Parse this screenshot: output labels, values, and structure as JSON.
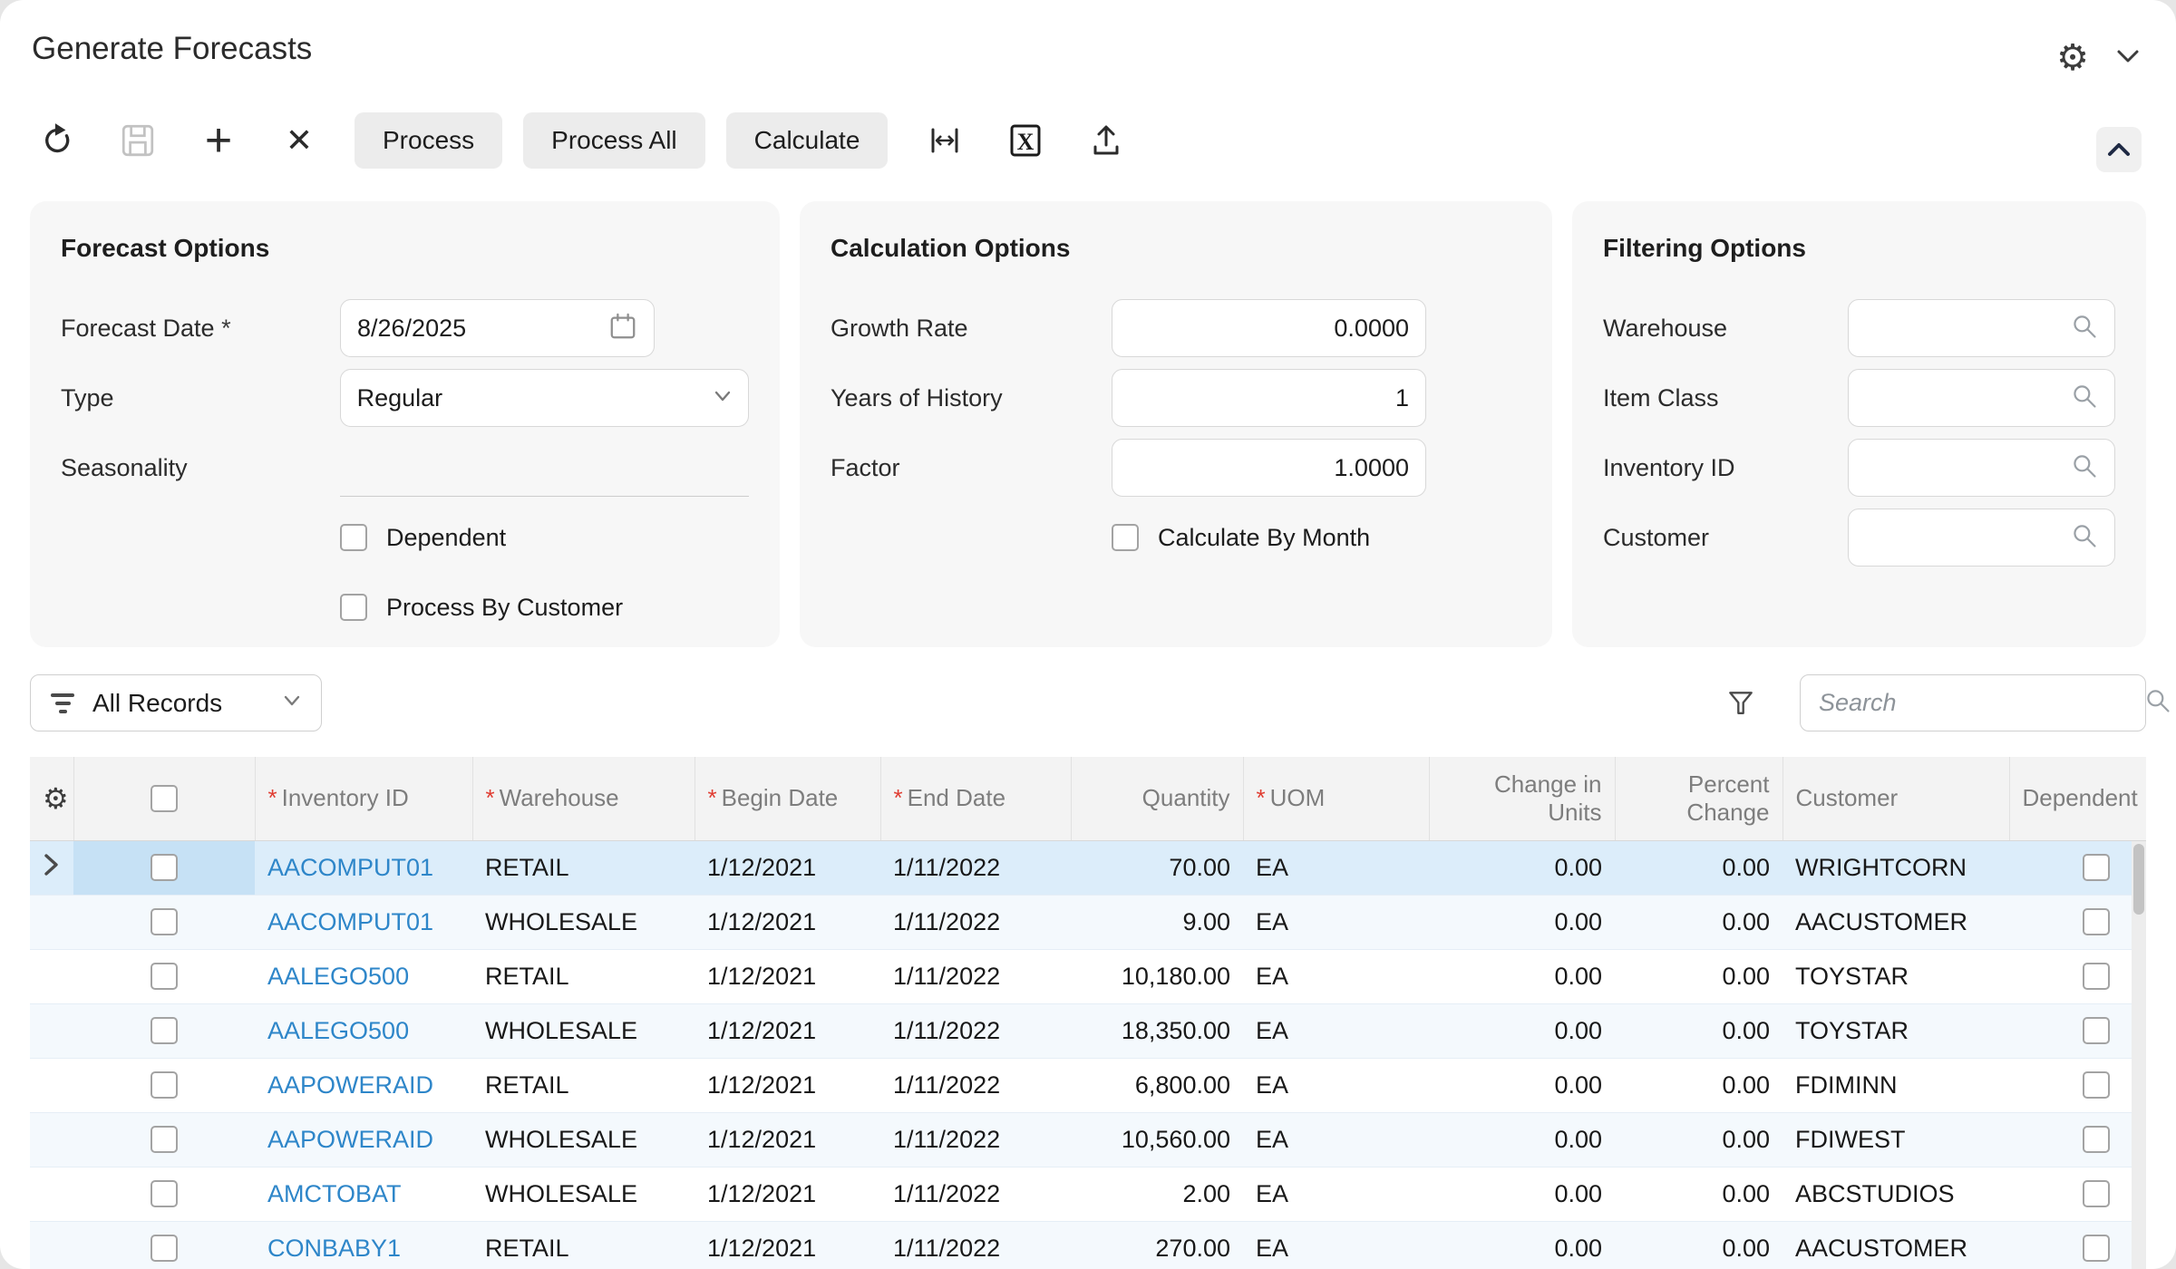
{
  "app": {
    "title": "Generate Forecasts"
  },
  "icons": {
    "gear": "⚙",
    "plus": "+",
    "close": "✕",
    "required_star": "*"
  },
  "toolbar": {
    "process_label": "Process",
    "process_all_label": "Process All",
    "calculate_label": "Calculate"
  },
  "forecast_options": {
    "title": "Forecast Options",
    "forecast_date_label": "Forecast Date",
    "forecast_date_required": "*",
    "forecast_date_value": "8/26/2025",
    "type_label": "Type",
    "type_value": "Regular",
    "seasonality_label": "Seasonality",
    "seasonality_value": "",
    "dependent_label": "Dependent",
    "dependent_checked": false,
    "process_by_customer_label": "Process By Customer",
    "process_by_customer_checked": false
  },
  "calculation_options": {
    "title": "Calculation Options",
    "growth_rate_label": "Growth Rate",
    "growth_rate_value": "0.0000",
    "years_of_history_label": "Years of History",
    "years_of_history_value": "1",
    "factor_label": "Factor",
    "factor_value": "1.0000",
    "calculate_by_month_label": "Calculate By Month",
    "calculate_by_month_checked": false
  },
  "filtering_options": {
    "title": "Filtering Options",
    "warehouse_label": "Warehouse",
    "warehouse_value": "",
    "item_class_label": "Item Class",
    "item_class_value": "",
    "inventory_id_label": "Inventory ID",
    "inventory_id_value": "",
    "customer_label": "Customer",
    "customer_value": ""
  },
  "filter_bar": {
    "records_filter": "All Records",
    "search_placeholder": "Search"
  },
  "colors": {
    "link_blue": "#2e86c9",
    "selected_row": "#dcedfa",
    "selected_checkbox_cell": "#c6e1f5",
    "required_red": "#e03c31"
  },
  "table": {
    "columns": [
      {
        "key": "inventory_id",
        "label": "Inventory ID",
        "required": true,
        "align": "left",
        "link": true
      },
      {
        "key": "warehouse",
        "label": "Warehouse",
        "required": true,
        "align": "left"
      },
      {
        "key": "begin_date",
        "label": "Begin Date",
        "required": true,
        "align": "left"
      },
      {
        "key": "end_date",
        "label": "End Date",
        "required": true,
        "align": "left"
      },
      {
        "key": "quantity",
        "label": "Quantity",
        "required": false,
        "align": "right"
      },
      {
        "key": "uom",
        "label": "UOM",
        "required": true,
        "align": "left"
      },
      {
        "key": "change_in_units",
        "label": "Change in Units",
        "required": false,
        "align": "right"
      },
      {
        "key": "percent_change",
        "label": "Percent Change",
        "required": false,
        "align": "right"
      },
      {
        "key": "customer",
        "label": "Customer",
        "required": false,
        "align": "left"
      },
      {
        "key": "dependent",
        "label": "Dependent",
        "required": false,
        "align": "right",
        "type": "checkbox"
      }
    ],
    "rows": [
      {
        "selected": true,
        "checked": false,
        "inventory_id": "AACOMPUT01",
        "warehouse": "RETAIL",
        "begin_date": "1/12/2021",
        "end_date": "1/11/2022",
        "quantity": "70.00",
        "uom": "EA",
        "change_in_units": "0.00",
        "percent_change": "0.00",
        "customer": "WRIGHTCORN",
        "dependent": false
      },
      {
        "selected": false,
        "checked": false,
        "inventory_id": "AACOMPUT01",
        "warehouse": "WHOLESALE",
        "begin_date": "1/12/2021",
        "end_date": "1/11/2022",
        "quantity": "9.00",
        "uom": "EA",
        "change_in_units": "0.00",
        "percent_change": "0.00",
        "customer": "AACUSTOMER",
        "dependent": false
      },
      {
        "selected": false,
        "checked": false,
        "inventory_id": "AALEGO500",
        "warehouse": "RETAIL",
        "begin_date": "1/12/2021",
        "end_date": "1/11/2022",
        "quantity": "10,180.00",
        "uom": "EA",
        "change_in_units": "0.00",
        "percent_change": "0.00",
        "customer": "TOYSTAR",
        "dependent": false
      },
      {
        "selected": false,
        "checked": false,
        "inventory_id": "AALEGO500",
        "warehouse": "WHOLESALE",
        "begin_date": "1/12/2021",
        "end_date": "1/11/2022",
        "quantity": "18,350.00",
        "uom": "EA",
        "change_in_units": "0.00",
        "percent_change": "0.00",
        "customer": "TOYSTAR",
        "dependent": false
      },
      {
        "selected": false,
        "checked": false,
        "inventory_id": "AAPOWERAID",
        "warehouse": "RETAIL",
        "begin_date": "1/12/2021",
        "end_date": "1/11/2022",
        "quantity": "6,800.00",
        "uom": "EA",
        "change_in_units": "0.00",
        "percent_change": "0.00",
        "customer": "FDIMINN",
        "dependent": false
      },
      {
        "selected": false,
        "checked": false,
        "inventory_id": "AAPOWERAID",
        "warehouse": "WHOLESALE",
        "begin_date": "1/12/2021",
        "end_date": "1/11/2022",
        "quantity": "10,560.00",
        "uom": "EA",
        "change_in_units": "0.00",
        "percent_change": "0.00",
        "customer": "FDIWEST",
        "dependent": false
      },
      {
        "selected": false,
        "checked": false,
        "inventory_id": "AMCTOBAT",
        "warehouse": "WHOLESALE",
        "begin_date": "1/12/2021",
        "end_date": "1/11/2022",
        "quantity": "2.00",
        "uom": "EA",
        "change_in_units": "0.00",
        "percent_change": "0.00",
        "customer": "ABCSTUDIOS",
        "dependent": false
      },
      {
        "selected": false,
        "checked": false,
        "inventory_id": "CONBABY1",
        "warehouse": "RETAIL",
        "begin_date": "1/12/2021",
        "end_date": "1/11/2022",
        "quantity": "270.00",
        "uom": "EA",
        "change_in_units": "0.00",
        "percent_change": "0.00",
        "customer": "AACUSTOMER",
        "dependent": false
      }
    ]
  }
}
